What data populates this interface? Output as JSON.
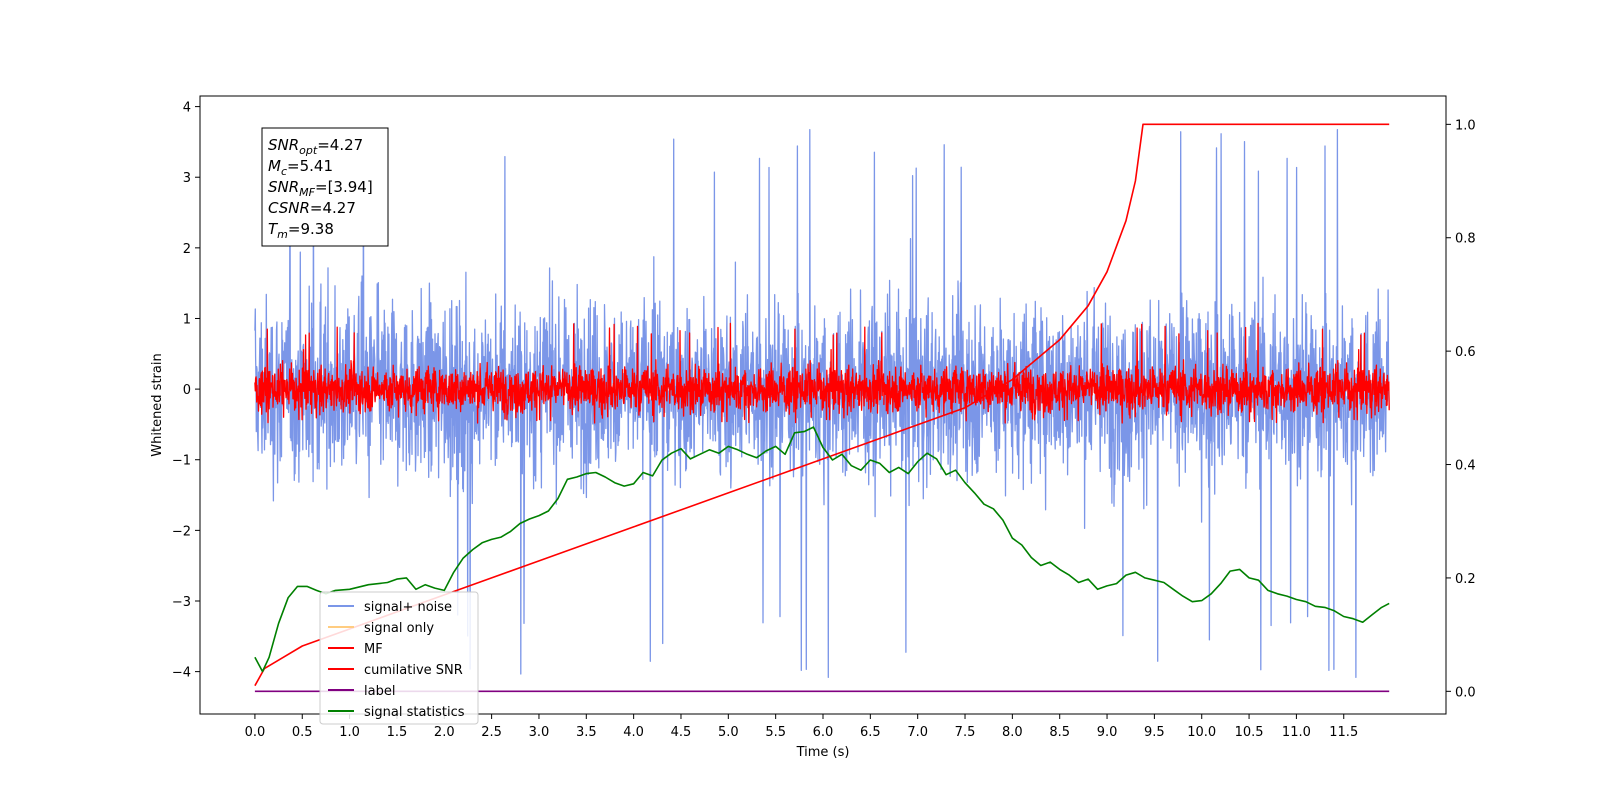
{
  "chart_data": {
    "type": "line",
    "xlabel": "Time (s)",
    "ylabel": "Whitened strain",
    "xlim": [
      -0.58,
      12.58
    ],
    "ylim": [
      -4.6,
      4.15
    ],
    "y2lim": [
      -0.04,
      1.05
    ],
    "x_ticks": [
      0.0,
      0.5,
      1.0,
      1.5,
      2.0,
      2.5,
      3.0,
      3.5,
      4.0,
      4.5,
      5.0,
      5.5,
      6.0,
      6.5,
      7.0,
      7.5,
      8.0,
      8.5,
      9.0,
      9.5,
      10.0,
      10.5,
      11.0,
      11.5
    ],
    "x_tick_labels": [
      "0.0",
      "0.5",
      "1.0",
      "1.5",
      "2.0",
      "2.5",
      "3.0",
      "3.5",
      "4.0",
      "4.5",
      "5.0",
      "5.5",
      "6.0",
      "6.5",
      "7.0",
      "7.5",
      "8.0",
      "8.5",
      "9.0",
      "9.5",
      "10.0",
      "10.5",
      "11.0",
      "11.5"
    ],
    "y_ticks": [
      -4,
      -3,
      -2,
      -1,
      0,
      1,
      2,
      3,
      4
    ],
    "y_tick_labels": [
      "−4",
      "−3",
      "−2",
      "−1",
      "0",
      "1",
      "2",
      "3",
      "4"
    ],
    "y2_ticks": [
      0.0,
      0.2,
      0.4,
      0.6,
      0.8,
      1.0
    ],
    "y2_tick_labels": [
      "0.0",
      "0.2",
      "0.4",
      "0.6",
      "0.8",
      "1.0"
    ],
    "legend_position": "lower-left",
    "annotation": {
      "lines": [
        {
          "base": "SNR",
          "sub": "opt",
          "value": "=4.27"
        },
        {
          "base": "M",
          "sub": "c",
          "value": "=5.41"
        },
        {
          "base": "SNR",
          "sub": "MF",
          "value": "=[3.94]"
        },
        {
          "base": "CSNR",
          "sub": "",
          "value": "=4.27"
        },
        {
          "base": "T",
          "sub": "m",
          "value": "=9.38"
        }
      ]
    },
    "series": [
      {
        "name": "signal+ noise",
        "color": "#7b96e8",
        "axis": "left",
        "kind": "noise",
        "x_range": [
          0.0,
          11.98
        ],
        "center": 0.0,
        "band": 1.6,
        "spike_max": 3.75,
        "spike_min": -4.15
      },
      {
        "name": "signal only",
        "color": "#ffcc80",
        "axis": "left",
        "kind": "hidden",
        "values": []
      },
      {
        "name": "MF",
        "color": "#ff0000",
        "axis": "left",
        "kind": "noise",
        "x_range": [
          0.0,
          11.98
        ],
        "center": 0.0,
        "band": 0.42,
        "spike_max": 0.95,
        "spike_min": -0.48
      },
      {
        "name": "cumilative SNR",
        "color": "#ff0000",
        "axis": "right",
        "x": [
          0.0,
          0.1,
          0.3,
          0.5,
          1.0,
          1.5,
          2.0,
          2.5,
          3.0,
          3.5,
          4.0,
          4.5,
          5.0,
          5.5,
          6.0,
          6.5,
          7.0,
          7.5,
          8.0,
          8.5,
          8.8,
          9.0,
          9.2,
          9.3,
          9.38,
          11.98
        ],
        "values": [
          0.01,
          0.04,
          0.06,
          0.08,
          0.11,
          0.14,
          0.17,
          0.2,
          0.23,
          0.26,
          0.29,
          0.32,
          0.35,
          0.38,
          0.41,
          0.44,
          0.47,
          0.5,
          0.55,
          0.62,
          0.68,
          0.74,
          0.83,
          0.9,
          1.0,
          1.0
        ]
      },
      {
        "name": "label",
        "color": "#800080",
        "axis": "right",
        "x": [
          0.0,
          11.98
        ],
        "values": [
          0.0,
          0.0
        ]
      },
      {
        "name": "signal statistics",
        "color": "#008000",
        "axis": "right",
        "x": [
          0.0,
          0.08,
          0.15,
          0.25,
          0.35,
          0.45,
          0.55,
          0.65,
          0.75,
          0.85,
          1.0,
          1.2,
          1.4,
          1.5,
          1.6,
          1.7,
          1.8,
          1.9,
          2.0,
          2.1,
          2.2,
          2.3,
          2.4,
          2.5,
          2.6,
          2.7,
          2.8,
          2.9,
          3.0,
          3.1,
          3.2,
          3.3,
          3.4,
          3.5,
          3.6,
          3.7,
          3.8,
          3.9,
          4.0,
          4.1,
          4.2,
          4.3,
          4.4,
          4.5,
          4.6,
          4.7,
          4.8,
          4.9,
          5.0,
          5.1,
          5.2,
          5.3,
          5.4,
          5.5,
          5.6,
          5.7,
          5.8,
          5.9,
          6.0,
          6.1,
          6.2,
          6.3,
          6.4,
          6.5,
          6.6,
          6.7,
          6.8,
          6.9,
          7.0,
          7.1,
          7.2,
          7.3,
          7.4,
          7.5,
          7.6,
          7.7,
          7.8,
          7.9,
          8.0,
          8.1,
          8.2,
          8.3,
          8.4,
          8.5,
          8.6,
          8.7,
          8.8,
          8.9,
          9.0,
          9.1,
          9.2,
          9.3,
          9.4,
          9.5,
          9.6,
          9.7,
          9.8,
          9.9,
          10.0,
          10.1,
          10.2,
          10.3,
          10.4,
          10.5,
          10.6,
          10.7,
          10.8,
          10.9,
          11.0,
          11.1,
          11.2,
          11.3,
          11.4,
          11.5,
          11.6,
          11.7,
          11.8,
          11.9,
          11.98
        ],
        "values": [
          0.06,
          0.035,
          0.06,
          0.12,
          0.165,
          0.185,
          0.185,
          0.178,
          0.172,
          0.178,
          0.18,
          0.188,
          0.192,
          0.198,
          0.2,
          0.18,
          0.188,
          0.182,
          0.178,
          0.21,
          0.235,
          0.25,
          0.262,
          0.268,
          0.272,
          0.282,
          0.296,
          0.304,
          0.31,
          0.318,
          0.34,
          0.374,
          0.378,
          0.384,
          0.386,
          0.378,
          0.368,
          0.362,
          0.366,
          0.386,
          0.38,
          0.408,
          0.42,
          0.428,
          0.41,
          0.418,
          0.426,
          0.42,
          0.432,
          0.426,
          0.418,
          0.412,
          0.424,
          0.432,
          0.418,
          0.456,
          0.458,
          0.466,
          0.43,
          0.408,
          0.418,
          0.398,
          0.39,
          0.408,
          0.402,
          0.386,
          0.395,
          0.384,
          0.405,
          0.42,
          0.41,
          0.382,
          0.39,
          0.368,
          0.35,
          0.33,
          0.322,
          0.302,
          0.27,
          0.258,
          0.236,
          0.222,
          0.228,
          0.215,
          0.205,
          0.192,
          0.198,
          0.18,
          0.186,
          0.19,
          0.205,
          0.21,
          0.2,
          0.196,
          0.192,
          0.18,
          0.168,
          0.158,
          0.16,
          0.172,
          0.19,
          0.212,
          0.215,
          0.2,
          0.196,
          0.178,
          0.172,
          0.168,
          0.162,
          0.158,
          0.15,
          0.148,
          0.142,
          0.132,
          0.128,
          0.122,
          0.135,
          0.148,
          0.155
        ]
      }
    ]
  }
}
